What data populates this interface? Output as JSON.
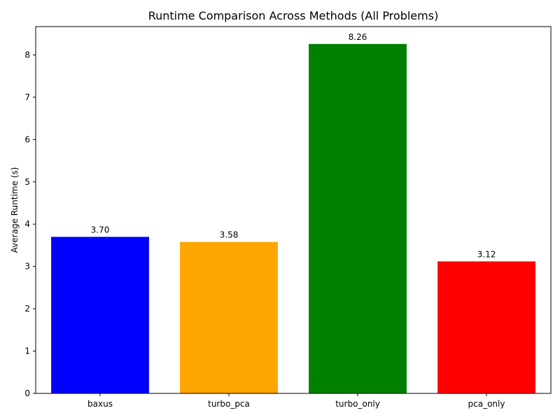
{
  "chart_data": {
    "type": "bar",
    "title": "Runtime Comparison Across Methods (All Problems)",
    "xlabel": "",
    "ylabel": "Average Runtime (s)",
    "categories": [
      "baxus",
      "turbo_pca",
      "turbo_only",
      "pca_only"
    ],
    "values": [
      3.7,
      3.58,
      8.26,
      3.12
    ],
    "value_labels": [
      "3.70",
      "3.58",
      "8.26",
      "3.12"
    ],
    "colors": [
      "#0000ff",
      "#ffa500",
      "#008000",
      "#ff0000"
    ],
    "ylim": [
      0,
      8.67
    ],
    "yticks": [
      0,
      1,
      2,
      3,
      4,
      5,
      6,
      7,
      8
    ],
    "grid": false,
    "legend": "none"
  }
}
